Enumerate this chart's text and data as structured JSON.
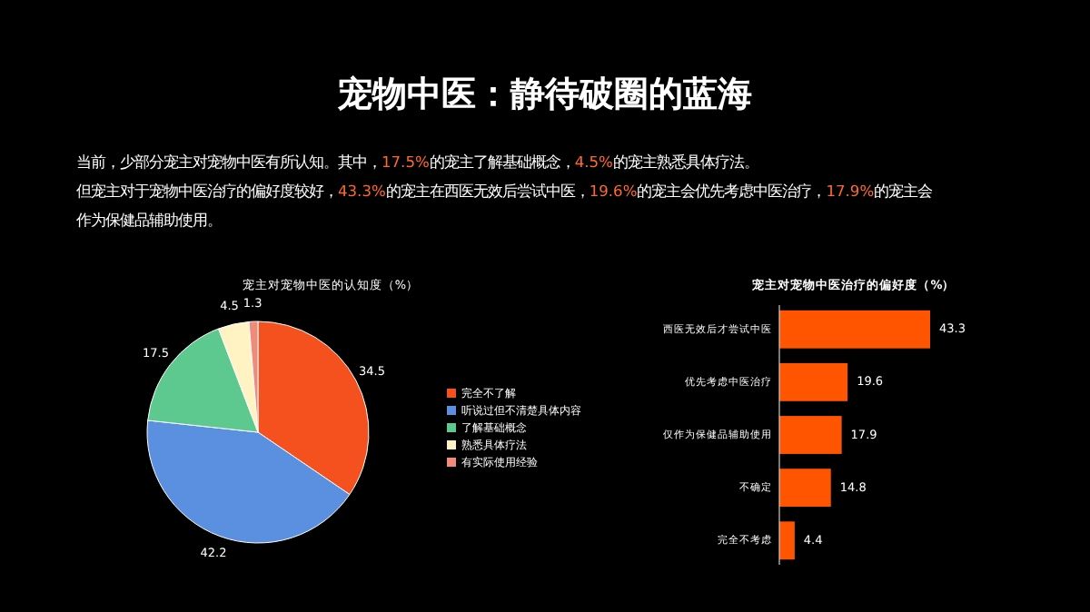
{
  "chart_data": [
    {
      "type": "other",
      "title": "宠物中医：静待破圈的蓝海",
      "annotations": [
        "当前，少部分宠主对宠物中医有所认知。其中，17.5%的宠主了解基础概念，4.5%的宠主熟悉具体疗法。",
        "但宠主对于宠物中医治疗的偏好度较好，43.3%的宠主在西医无效后尝试中医，19.6%的宠主会优先考虑中医治疗，17.9%的宠主会作为保健品辅助使用。"
      ]
    },
    {
      "type": "pie",
      "title": "宠主对宠物中医的认知度（%）",
      "categories": [
        "完全不了解",
        "听说过但不清楚具体内容",
        "了解基础概念",
        "熟悉具体疗法",
        "有实际使用经验"
      ],
      "values": [
        34.5,
        42.2,
        17.5,
        4.5,
        1.3
      ],
      "colors": [
        "#f4511e",
        "#5b8fe0",
        "#5dc98f",
        "#fff3c4",
        "#f08a7a"
      ],
      "data_labels": true,
      "legend": "right"
    },
    {
      "type": "bar",
      "orientation": "horizontal",
      "title": "宠主对宠物中医治疗的偏好度（%）",
      "categories": [
        "西医无效后才尝试中医",
        "优先考虑中医治疗",
        "仅作为保健品辅助使用",
        "不确定",
        "完全不考虑"
      ],
      "values": [
        43.3,
        19.6,
        17.9,
        14.8,
        4.4
      ],
      "color": "#ff5500",
      "data_labels": true
    }
  ]
}
